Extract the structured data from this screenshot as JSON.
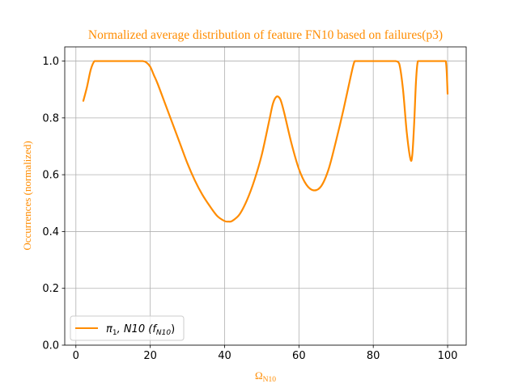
{
  "chart_data": {
    "type": "line",
    "title": "Normalized average distribution of feature FN10 based on failures(p3)",
    "xlabel": "Ω",
    "xlabel_sub": "N10",
    "ylabel": "Occurrences (normalized)",
    "xlim": [
      -3,
      105
    ],
    "ylim": [
      0,
      1.05
    ],
    "xticks": [
      0,
      20,
      40,
      60,
      80,
      100
    ],
    "yticks": [
      0.0,
      0.2,
      0.4,
      0.6,
      0.8,
      1.0
    ],
    "xtick_labels": [
      "0",
      "20",
      "40",
      "60",
      "80",
      "100"
    ],
    "ytick_labels": [
      "0.0",
      "0.2",
      "0.4",
      "0.6",
      "0.8",
      "1.0"
    ],
    "grid": true,
    "legend_position": "lower-left",
    "accent_color": "#ff8c00",
    "series": [
      {
        "name": "π1, N10 (fN10)",
        "legend_parts": {
          "symbol": "π",
          "symbol_sub": "1",
          "middle": ", N10 (",
          "f": "f",
          "f_sub": "N10",
          "close": ")"
        },
        "color": "#ff8c00",
        "x": [
          2,
          3,
          4,
          5,
          6,
          8,
          10,
          12,
          14,
          16,
          18,
          19,
          20,
          21,
          22,
          24,
          26,
          28,
          30,
          32,
          34,
          36,
          38,
          40,
          41,
          42,
          44,
          46,
          48,
          50,
          52,
          53,
          54,
          55,
          56,
          58,
          60,
          62,
          64,
          66,
          68,
          70,
          72,
          74,
          75,
          76,
          78,
          80,
          82,
          84,
          86,
          87,
          88,
          89,
          90,
          90.5,
          91,
          91.5,
          92,
          93,
          94,
          96,
          98,
          99.5,
          100
        ],
        "y": [
          0.86,
          0.91,
          0.97,
          1.0,
          1.0,
          1.0,
          1.0,
          1.0,
          1.0,
          1.0,
          1.0,
          0.995,
          0.98,
          0.95,
          0.92,
          0.85,
          0.78,
          0.71,
          0.64,
          0.58,
          0.53,
          0.49,
          0.455,
          0.437,
          0.435,
          0.437,
          0.46,
          0.51,
          0.58,
          0.67,
          0.79,
          0.85,
          0.875,
          0.865,
          0.82,
          0.71,
          0.62,
          0.565,
          0.545,
          0.56,
          0.62,
          0.72,
          0.83,
          0.95,
          1.0,
          1.0,
          1.0,
          1.0,
          1.0,
          1.0,
          1.0,
          0.99,
          0.9,
          0.75,
          0.655,
          0.67,
          0.78,
          0.93,
          1.0,
          1.0,
          1.0,
          1.0,
          1.0,
          1.0,
          0.885
        ]
      }
    ]
  }
}
